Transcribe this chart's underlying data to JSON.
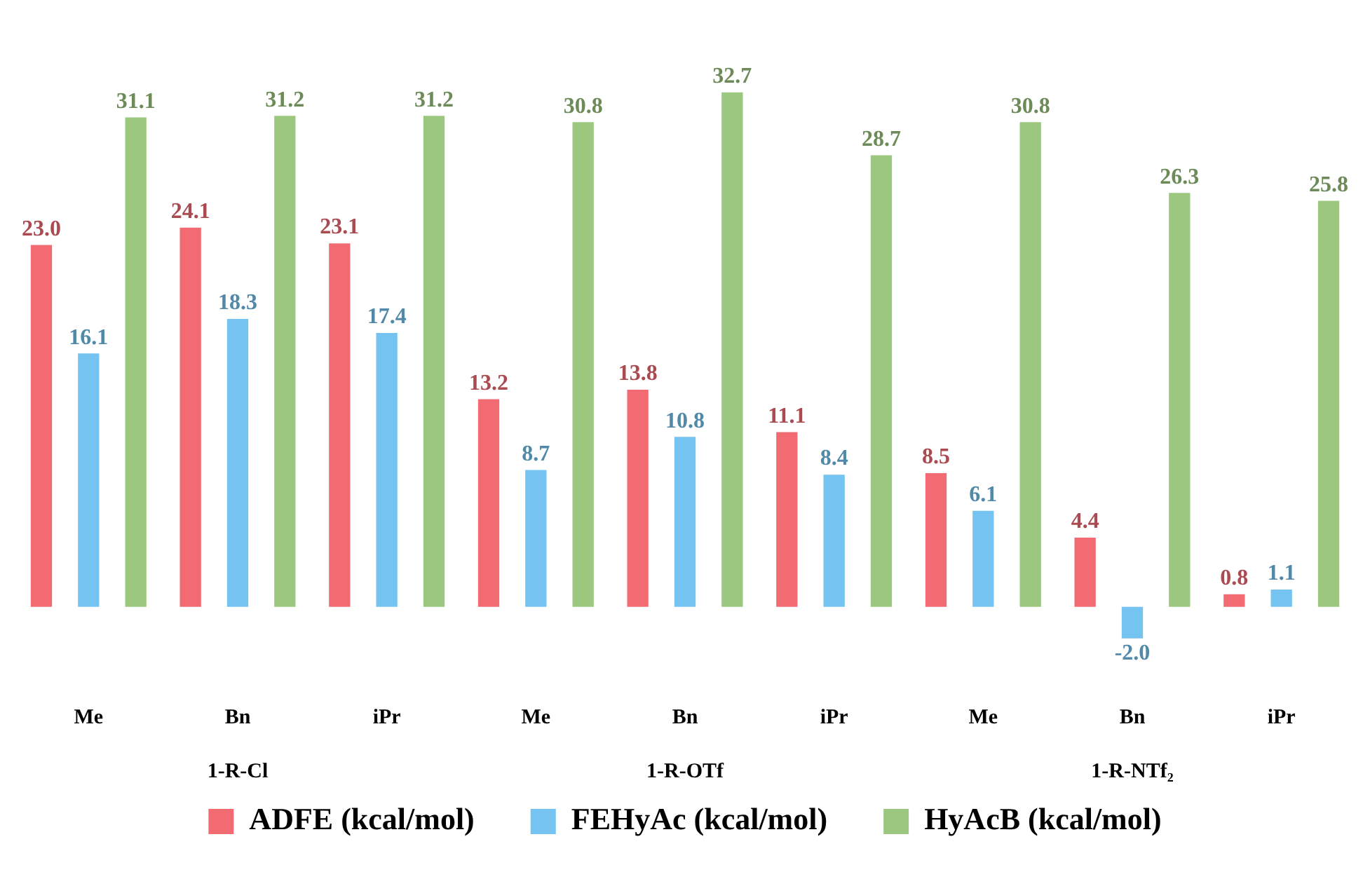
{
  "chart_data": {
    "type": "bar",
    "categories": [
      "Me",
      "Bn",
      "iPr",
      "Me",
      "Bn",
      "iPr",
      "Me",
      "Bn",
      "iPr"
    ],
    "series": [
      {
        "name": "ADFE (kcal/mol)",
        "color": "#f26b73",
        "values": [
          23.0,
          24.1,
          23.1,
          13.2,
          13.8,
          11.1,
          8.5,
          4.4,
          0.8
        ],
        "value_labels": [
          "23.0",
          "24.1",
          "23.1",
          "13.2",
          "13.8",
          "11.1",
          "8.5",
          "4.4",
          "0.8"
        ]
      },
      {
        "name": "FEHyAc (kcal/mol)",
        "color": "#74c3f0",
        "values": [
          16.1,
          18.3,
          17.4,
          8.7,
          10.8,
          8.4,
          6.1,
          -2.0,
          1.1
        ],
        "value_labels": [
          "16.1",
          "18.3",
          "17.4",
          "8.7",
          "10.8",
          "8.4",
          "6.1",
          "-2.0",
          "1.1"
        ]
      },
      {
        "name": "HyAcB (kcal/mol)",
        "color": "#9cc77e",
        "values": [
          31.1,
          31.2,
          31.2,
          30.8,
          32.7,
          28.7,
          30.8,
          26.3,
          25.8
        ],
        "value_labels": [
          "31.1",
          "31.2",
          "31.2",
          "30.8",
          "32.7",
          "28.7",
          "30.8",
          "26.3",
          "25.8"
        ]
      }
    ],
    "annotations": [
      "1-R-Cl",
      "1-R-OTf",
      "1-R-NTf₂"
    ],
    "legend": "bottom",
    "grid": false,
    "tick_labels": "x"
  }
}
